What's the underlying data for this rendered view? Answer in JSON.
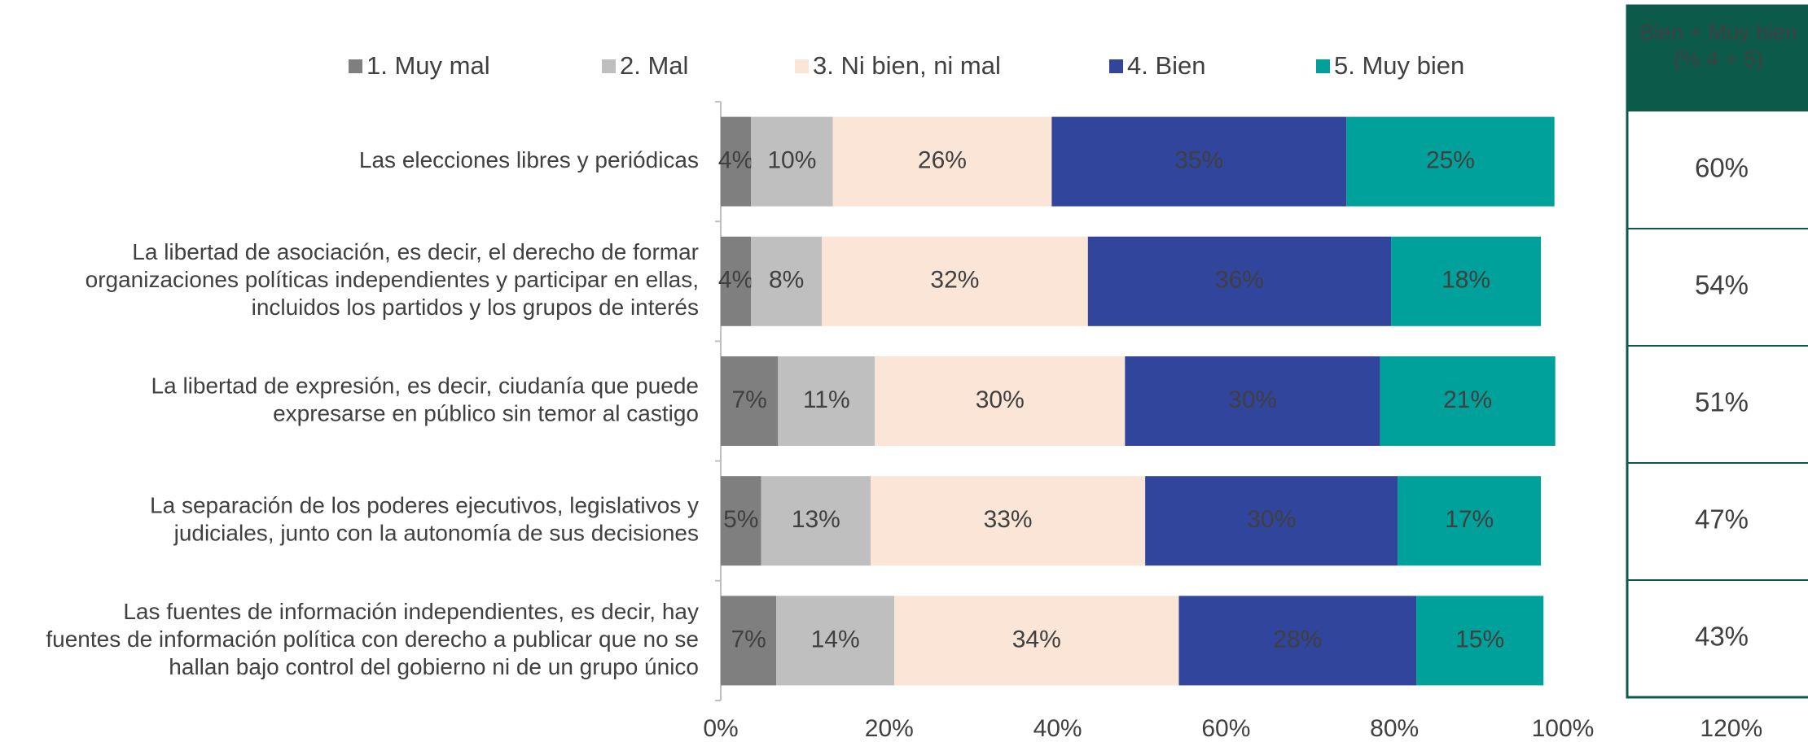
{
  "chart_data": {
    "type": "stacked_barh",
    "categories": [
      [
        "Las elecciones libres y periódicas"
      ],
      [
        "La libertad de asociación, es decir, el derecho de formar",
        "organizaciones políticas independientes y participar en ellas,",
        "incluidos los partidos y los grupos de interés"
      ],
      [
        "La libertad de expresión, es decir, ciudanía que puede",
        "expresarse en público sin temor al castigo"
      ],
      [
        "La separación de los poderes ejecutivos, legislativos y",
        "judiciales, junto con la autonomía de sus decisiones"
      ],
      [
        "Las fuentes de información independientes, es decir, hay",
        "fuentes de información política con derecho a publicar que no se",
        "hallan bajo control del gobierno ni de un grupo único"
      ]
    ],
    "series": [
      {
        "name": "1. Muy mal",
        "color": "#7f7f7f",
        "label_color": "#ffffff",
        "values": [
          3.6,
          3.6,
          6.8,
          4.8,
          6.6
        ],
        "value_labels": [
          "4%",
          "4%",
          "7%",
          "5%",
          "7%"
        ]
      },
      {
        "name": "2. Mal",
        "color": "#bfbfbf",
        "label_color": "#000000",
        "values": [
          9.7,
          8.4,
          11.5,
          13,
          14
        ],
        "value_labels": [
          "10%",
          "8%",
          "11%",
          "13%",
          "14%"
        ]
      },
      {
        "name": "3. Ni bien, ni mal",
        "color": "#fbe5d6",
        "label_color": "#000000",
        "values": [
          26,
          31.6,
          29.7,
          32.6,
          33.8
        ],
        "value_labels": [
          "26%",
          "32%",
          "30%",
          "33%",
          "34%"
        ]
      },
      {
        "name": "4. Bien",
        "color": "#30459b",
        "label_color": "#ffffff",
        "values": [
          35,
          36,
          30.3,
          30,
          28.2
        ],
        "value_labels": [
          "35%",
          "36%",
          "30%",
          "30%",
          "28%"
        ]
      },
      {
        "name": "5. Muy bien",
        "color": "#00a19a",
        "label_color": "#ffffff",
        "values": [
          24.7,
          17.8,
          20.8,
          17,
          15.1
        ],
        "value_labels": [
          "25%",
          "18%",
          "21%",
          "17%",
          "15%"
        ]
      }
    ],
    "xlim": [
      0,
      120
    ],
    "xticks": [
      {
        "value": 0,
        "label": "0%"
      },
      {
        "value": 20,
        "label": "20%"
      },
      {
        "value": 40,
        "label": "40%"
      },
      {
        "value": 60,
        "label": "60%"
      },
      {
        "value": 80,
        "label": "80%"
      },
      {
        "value": 100,
        "label": "100%"
      },
      {
        "value": 120,
        "label": "120%"
      }
    ],
    "legend": "top"
  },
  "table": {
    "header": [
      "Bien + Muy bien",
      "(% 4 + 5)"
    ],
    "values": [
      "60%",
      "54%",
      "51%",
      "47%",
      "43%"
    ]
  }
}
